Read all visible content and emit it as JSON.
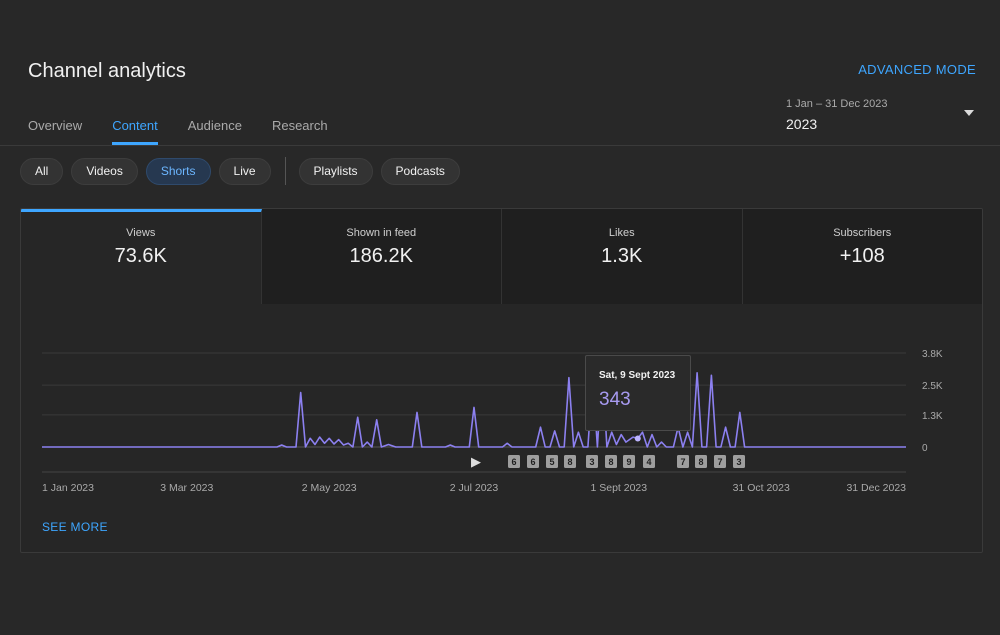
{
  "header": {
    "title": "Channel analytics",
    "advanced_label": "ADVANCED MODE"
  },
  "tabs": [
    {
      "label": "Overview"
    },
    {
      "label": "Content",
      "active": true
    },
    {
      "label": "Audience"
    },
    {
      "label": "Research"
    }
  ],
  "date_picker": {
    "range": "1 Jan – 31 Dec 2023",
    "year": "2023"
  },
  "chips": {
    "all": "All",
    "videos": "Videos",
    "shorts": "Shorts",
    "live": "Live",
    "playlists": "Playlists",
    "podcasts": "Podcasts",
    "active": "Shorts"
  },
  "metrics": [
    {
      "label": "Views",
      "value": "73.6K",
      "active": true
    },
    {
      "label": "Shown in feed",
      "value": "186.2K"
    },
    {
      "label": "Likes",
      "value": "1.3K"
    },
    {
      "label": "Subscribers",
      "value": "+108"
    }
  ],
  "tooltip": {
    "date": "Sat, 9 Sept 2023",
    "value": "343"
  },
  "see_more": "SEE MORE",
  "colors": {
    "accent": "#3ea6ff",
    "line": "#8c80f0",
    "background": "#282828"
  },
  "chart_data": {
    "type": "line",
    "x_tick_labels": [
      "1 Jan 2023",
      "3 Mar 2023",
      "2 May 2023",
      "2 Jul 2023",
      "1 Sept 2023",
      "31 Oct 2023",
      "31 Dec 2023"
    ],
    "y_tick_labels": [
      "3.8K",
      "2.5K",
      "1.3K",
      "0"
    ],
    "ylim": [
      0,
      3800
    ],
    "grid": true,
    "series": [
      {
        "points": [
          [
            "2023-01-01",
            0
          ],
          [
            "2023-04-10",
            0
          ],
          [
            "2023-04-12",
            80
          ],
          [
            "2023-04-14",
            0
          ],
          [
            "2023-04-18",
            0
          ],
          [
            "2023-04-20",
            2200
          ],
          [
            "2023-04-22",
            0
          ],
          [
            "2023-04-24",
            350
          ],
          [
            "2023-04-26",
            100
          ],
          [
            "2023-04-28",
            400
          ],
          [
            "2023-04-30",
            150
          ],
          [
            "2023-05-02",
            350
          ],
          [
            "2023-05-04",
            120
          ],
          [
            "2023-05-06",
            300
          ],
          [
            "2023-05-08",
            80
          ],
          [
            "2023-05-10",
            150
          ],
          [
            "2023-05-12",
            0
          ],
          [
            "2023-05-14",
            1200
          ],
          [
            "2023-05-16",
            0
          ],
          [
            "2023-05-18",
            200
          ],
          [
            "2023-05-20",
            0
          ],
          [
            "2023-05-22",
            1100
          ],
          [
            "2023-05-24",
            0
          ],
          [
            "2023-05-27",
            100
          ],
          [
            "2023-05-30",
            0
          ],
          [
            "2023-06-06",
            0
          ],
          [
            "2023-06-08",
            1400
          ],
          [
            "2023-06-10",
            0
          ],
          [
            "2023-06-20",
            0
          ],
          [
            "2023-06-22",
            80
          ],
          [
            "2023-06-24",
            0
          ],
          [
            "2023-06-30",
            0
          ],
          [
            "2023-07-02",
            1600
          ],
          [
            "2023-07-04",
            0
          ],
          [
            "2023-07-14",
            0
          ],
          [
            "2023-07-16",
            150
          ],
          [
            "2023-07-18",
            0
          ],
          [
            "2023-07-28",
            0
          ],
          [
            "2023-07-30",
            800
          ],
          [
            "2023-08-01",
            0
          ],
          [
            "2023-08-03",
            0
          ],
          [
            "2023-08-05",
            650
          ],
          [
            "2023-08-07",
            0
          ],
          [
            "2023-08-09",
            0
          ],
          [
            "2023-08-11",
            2800
          ],
          [
            "2023-08-13",
            0
          ],
          [
            "2023-08-15",
            600
          ],
          [
            "2023-08-17",
            0
          ],
          [
            "2023-08-19",
            0
          ],
          [
            "2023-08-21",
            2900
          ],
          [
            "2023-08-23",
            0
          ],
          [
            "2023-08-25",
            3300
          ],
          [
            "2023-08-27",
            0
          ],
          [
            "2023-08-29",
            600
          ],
          [
            "2023-08-31",
            100
          ],
          [
            "2023-09-02",
            500
          ],
          [
            "2023-09-04",
            200
          ],
          [
            "2023-09-07",
            400
          ],
          [
            "2023-09-09",
            343
          ],
          [
            "2023-09-11",
            600
          ],
          [
            "2023-09-13",
            0
          ],
          [
            "2023-09-15",
            500
          ],
          [
            "2023-09-17",
            0
          ],
          [
            "2023-09-19",
            200
          ],
          [
            "2023-09-21",
            0
          ],
          [
            "2023-09-24",
            0
          ],
          [
            "2023-09-26",
            800
          ],
          [
            "2023-09-28",
            0
          ],
          [
            "2023-09-30",
            600
          ],
          [
            "2023-10-02",
            0
          ],
          [
            "2023-10-04",
            3000
          ],
          [
            "2023-10-06",
            0
          ],
          [
            "2023-10-08",
            0
          ],
          [
            "2023-10-10",
            2900
          ],
          [
            "2023-10-12",
            0
          ],
          [
            "2023-10-14",
            0
          ],
          [
            "2023-10-16",
            800
          ],
          [
            "2023-10-18",
            0
          ],
          [
            "2023-10-20",
            0
          ],
          [
            "2023-10-22",
            1400
          ],
          [
            "2023-10-24",
            0
          ],
          [
            "2023-12-31",
            0
          ]
        ]
      }
    ],
    "markers": {
      "shorts_icon": "shorts-icon",
      "labels": [
        "6",
        "6",
        "5",
        "8",
        "3",
        "8",
        "9",
        "4",
        "7",
        "8",
        "7",
        "3"
      ]
    }
  }
}
